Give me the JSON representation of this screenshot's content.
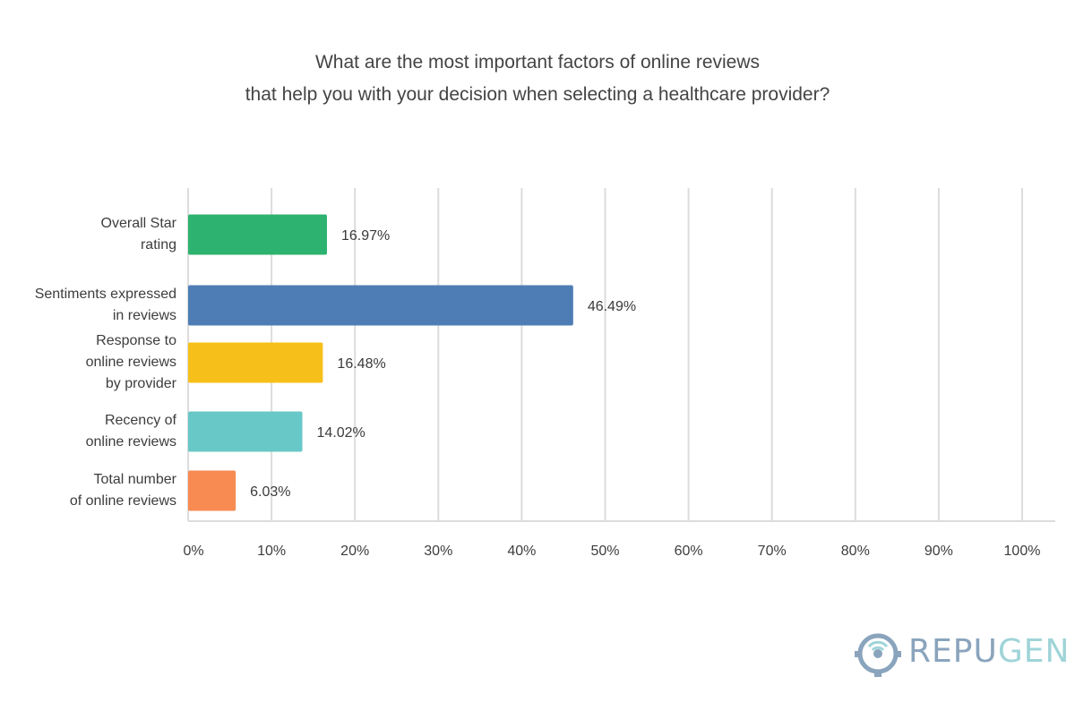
{
  "chart_data": {
    "type": "bar",
    "orientation": "horizontal",
    "title": [
      "What are the most important factors of online reviews",
      "that help you with your decision when selecting a healthcare provider?"
    ],
    "categories": [
      "Overall Star\nrating",
      "Sentiments expressed\nin reviews",
      "Response to\nonline reviews\nby provider",
      "Recency of\nonline reviews",
      "Total number\nof online reviews"
    ],
    "values": [
      16.97,
      46.49,
      16.48,
      14.02,
      6.03
    ],
    "value_labels": [
      "16.97%",
      "46.49%",
      "16.48%",
      "14.02%",
      "6.03%"
    ],
    "colors": [
      "#2db36f",
      "#4e7db5",
      "#f6bf1a",
      "#68c8c7",
      "#f78b52"
    ],
    "xlim": [
      0,
      100
    ],
    "xticks": [
      0,
      10,
      20,
      30,
      40,
      50,
      60,
      70,
      80,
      90,
      100
    ],
    "xtick_labels": [
      "0%",
      "10%",
      "20%",
      "30%",
      "40%",
      "50%",
      "60%",
      "70%",
      "80%",
      "90%",
      "100%"
    ],
    "grid": true,
    "legend": "none"
  },
  "brand": {
    "logo_icon": "repugen-logo-icon",
    "name_part1": "REPU",
    "name_part2": "GEN",
    "color_primary": "#8aa4bd",
    "color_secondary": "#9fd4d8"
  }
}
